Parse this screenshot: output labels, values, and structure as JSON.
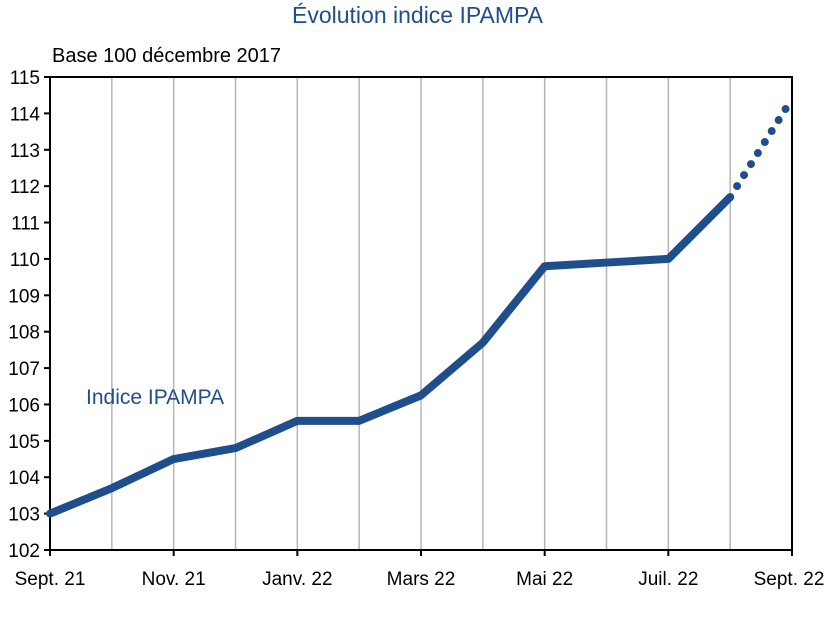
{
  "chart_data": {
    "type": "line",
    "title": "Évolution indice IPAMPA",
    "subtitle": "Base 100 décembre 2017",
    "xlabel": "",
    "ylabel": "",
    "x_tick_labels": [
      "Sept. 21",
      "Nov. 21",
      "Janv. 22",
      "Mars 22",
      "Mai 22",
      "Juil. 22",
      "Sept. 22"
    ],
    "y_ticks": [
      102,
      103,
      104,
      105,
      106,
      107,
      108,
      109,
      110,
      111,
      112,
      113,
      114,
      115
    ],
    "ylim": [
      102,
      115
    ],
    "grid": "vertical",
    "colors": {
      "series": "#1f4e8c",
      "title": "#1f4e8c",
      "grid": "#b5b5b5",
      "axis": "#000000"
    },
    "series": [
      {
        "name": "Indice IPAMPA",
        "x": [
          "Sept. 21",
          "Oct. 21",
          "Nov. 21",
          "Déc. 21",
          "Janv. 22",
          "Févr. 22",
          "Mars 22",
          "Avr. 22",
          "Mai 22",
          "Juin 22",
          "Juil. 22",
          "Août 22",
          "Sept. 22"
        ],
        "values": [
          103.0,
          103.7,
          104.5,
          104.8,
          105.55,
          105.55,
          106.25,
          107.7,
          109.8,
          109.9,
          110.0,
          111.7,
          114.4
        ],
        "estimated_from_index": 11
      }
    ]
  }
}
